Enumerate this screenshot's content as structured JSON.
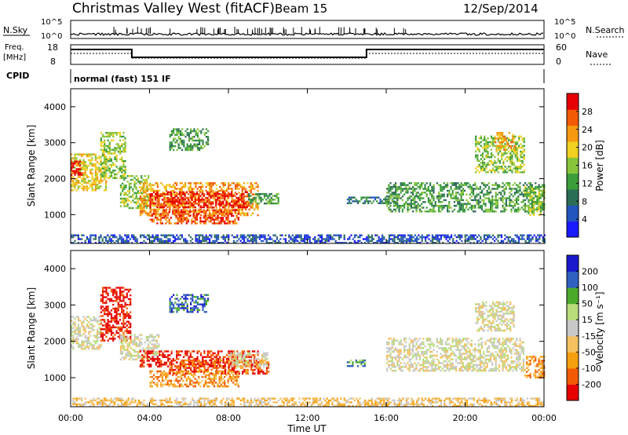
{
  "header": {
    "station": "Christmas Valley West (fitACF)",
    "beam": "Beam 15",
    "date": "12/Sep/2014"
  },
  "top_panels": {
    "nsky_label": "N.Sky",
    "nsky_ticks": [
      "10^5",
      "10^0"
    ],
    "nsearch_label": "N.Search",
    "nsearch_ticks": [
      "10^5",
      "10^0"
    ],
    "freq_label": "Freq.",
    "freq_unit": "[MHz]",
    "freq_ticks": [
      "18",
      "8"
    ],
    "nave_label": "Nave",
    "nave_ticks": [
      "60",
      "0"
    ],
    "cpid_label": "CPID",
    "cpid_value": "normal (fast) 151 IF"
  },
  "chart_data": [
    {
      "type": "heatmap",
      "panel": "power",
      "ylabel": "Slant Range [km]",
      "xlabel": "",
      "ylim": [
        200,
        4500
      ],
      "yticks": [
        "4000",
        "3000",
        "2000",
        "1000"
      ],
      "colorbar_label": "Power [dB]",
      "colorbar_ticks": [
        "28",
        "24",
        "20",
        "16",
        "12",
        "8",
        "4"
      ],
      "colors": [
        "#1a1aff",
        "#2255bb",
        "#2b6e55",
        "#3a9d3a",
        "#87c43a",
        "#f0d020",
        "#f59a10",
        "#f25a05",
        "#e60000"
      ],
      "regions": [
        {
          "t0": 0.0,
          "t1": 1.8,
          "r0": 1700,
          "r1": 2700,
          "level": 5
        },
        {
          "t0": 0.0,
          "t1": 0.6,
          "r0": 2100,
          "r1": 2500,
          "level": 8
        },
        {
          "t0": 1.5,
          "t1": 2.8,
          "r0": 2000,
          "r1": 3300,
          "level": 4
        },
        {
          "t0": 2.5,
          "t1": 4.0,
          "r0": 1200,
          "r1": 2100,
          "level": 4
        },
        {
          "t0": 3.5,
          "t1": 9.5,
          "r0": 1000,
          "r1": 1900,
          "level": 6
        },
        {
          "t0": 4.0,
          "t1": 9.0,
          "r0": 1200,
          "r1": 1650,
          "level": 8
        },
        {
          "t0": 4.0,
          "t1": 8.5,
          "r0": 750,
          "r1": 1150,
          "level": 7
        },
        {
          "t0": 5.0,
          "t1": 7.0,
          "r0": 2800,
          "r1": 3400,
          "level": 3
        },
        {
          "t0": 9.0,
          "t1": 10.5,
          "r0": 1300,
          "r1": 1600,
          "level": 3
        },
        {
          "t0": 14.0,
          "t1": 16.5,
          "r0": 1300,
          "r1": 1500,
          "level": 2
        },
        {
          "t0": 16.0,
          "t1": 24.0,
          "r0": 1100,
          "r1": 1900,
          "level": 3
        },
        {
          "t0": 20.5,
          "t1": 23.0,
          "r0": 2200,
          "r1": 3200,
          "level": 4
        },
        {
          "t0": 21.5,
          "t1": 22.5,
          "r0": 2800,
          "r1": 3300,
          "level": 6
        },
        {
          "t0": 23.0,
          "t1": 24.0,
          "r0": 1000,
          "r1": 1800,
          "level": 4
        },
        {
          "t0": 0.0,
          "t1": 24.0,
          "r0": 220,
          "r1": 450,
          "level": 1
        }
      ]
    },
    {
      "type": "heatmap",
      "panel": "velocity",
      "ylabel": "Slant Range [km]",
      "xlabel": "Time UT",
      "ylim": [
        200,
        4500
      ],
      "yticks": [
        "4000",
        "3000",
        "2000",
        "1000"
      ],
      "xticks": [
        "00:00",
        "04:00",
        "08:00",
        "12:00",
        "16:00",
        "20:00",
        "00:00"
      ],
      "colorbar_label": "Velocity [m s⁻¹]",
      "colorbar_ticks": [
        "200",
        "100",
        "50",
        "15",
        "-15",
        "-50",
        "-100",
        "-200"
      ],
      "colors": [
        "#e60000",
        "#f25a05",
        "#f5a010",
        "#f5c060",
        "#c8c8c8",
        "#b8dc7a",
        "#4caa2a",
        "#3060c0",
        "#1a1acc"
      ],
      "regions": [
        {
          "t0": 0.0,
          "t1": 1.5,
          "r0": 1800,
          "r1": 2700,
          "level": 4
        },
        {
          "t0": 1.5,
          "t1": 3.0,
          "r0": 2000,
          "r1": 3500,
          "level": 0
        },
        {
          "t0": 2.5,
          "t1": 4.5,
          "r0": 1500,
          "r1": 2200,
          "level": 4
        },
        {
          "t0": 3.5,
          "t1": 9.5,
          "r0": 1300,
          "r1": 1750,
          "level": 0
        },
        {
          "t0": 4.0,
          "t1": 8.5,
          "r0": 750,
          "r1": 1200,
          "level": 2
        },
        {
          "t0": 5.0,
          "t1": 10.0,
          "r0": 1100,
          "r1": 1500,
          "level": 1
        },
        {
          "t0": 8.0,
          "t1": 10.0,
          "r0": 1300,
          "r1": 1700,
          "level": 4
        },
        {
          "t0": 5.0,
          "t1": 7.0,
          "r0": 2800,
          "r1": 3300,
          "level": 7
        },
        {
          "t0": 14.0,
          "t1": 15.0,
          "r0": 1300,
          "r1": 1500,
          "level": 6
        },
        {
          "t0": 16.0,
          "t1": 23.0,
          "r0": 1200,
          "r1": 2100,
          "level": 4
        },
        {
          "t0": 20.5,
          "t1": 22.5,
          "r0": 2300,
          "r1": 3100,
          "level": 4
        },
        {
          "t0": 23.0,
          "t1": 24.0,
          "r0": 1000,
          "r1": 1600,
          "level": 2
        },
        {
          "t0": 0.0,
          "t1": 24.0,
          "r0": 220,
          "r1": 450,
          "level": 3
        }
      ]
    }
  ]
}
